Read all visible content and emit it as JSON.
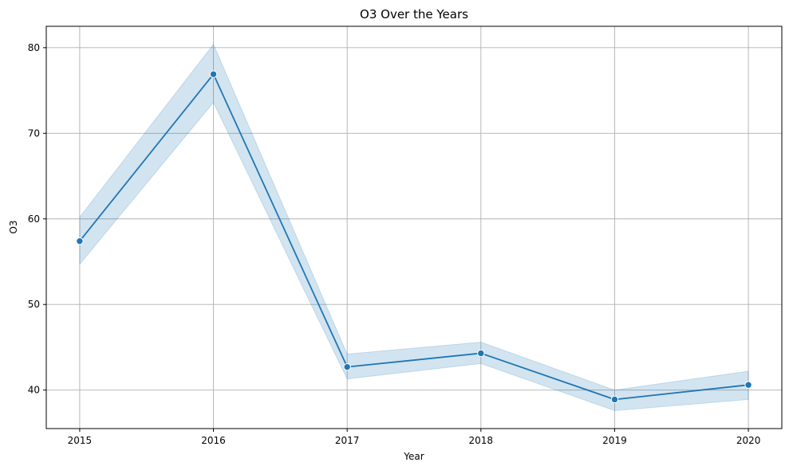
{
  "chart_data": {
    "type": "line",
    "title": "O3 Over the Years",
    "xlabel": "Year",
    "ylabel": "O3",
    "x": [
      2015,
      2016,
      2017,
      2018,
      2019,
      2020
    ],
    "x_tick_labels": [
      "2015",
      "2016",
      "2017",
      "2018",
      "2019",
      "2020"
    ],
    "y_ticks": [
      40,
      50,
      60,
      70,
      80
    ],
    "y_tick_labels": [
      "40",
      "50",
      "60",
      "70",
      "80"
    ],
    "xlim": [
      2014.75,
      2020.25
    ],
    "ylim": [
      35.5,
      82.5
    ],
    "grid": true,
    "legend": "none",
    "series": [
      {
        "values": [
          57.4,
          76.9,
          42.7,
          44.3,
          38.9,
          40.6
        ],
        "ci_lower": [
          54.7,
          73.6,
          41.3,
          43.1,
          37.6,
          38.9
        ],
        "ci_upper": [
          60.2,
          80.4,
          44.2,
          45.6,
          40.0,
          42.2
        ],
        "color": "#1f77b4",
        "band_color": "#1f77b4",
        "marker": "circle"
      }
    ]
  }
}
